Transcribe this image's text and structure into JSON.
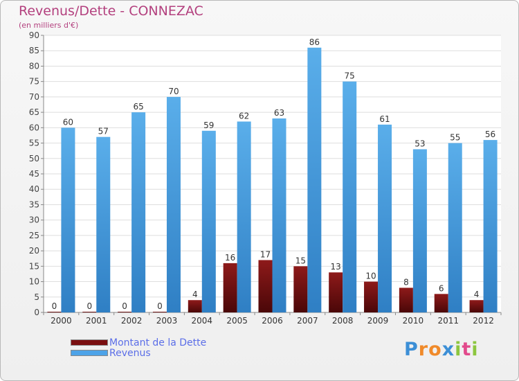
{
  "header": {
    "title": "Revenus/Dette - CONNEZAC",
    "subtitle": "(en milliers d'€)"
  },
  "legend": [
    {
      "label": "Montant de la Dette",
      "color": "#7a0f10"
    },
    {
      "label": "Revenus",
      "color": "#4da3e8"
    }
  ],
  "logo": {
    "text": "Proxiti",
    "letters": [
      "P",
      "r",
      "o",
      "x",
      "i",
      "t",
      "i"
    ],
    "colors": [
      "#3c8fd6",
      "#f08a2a",
      "#f08a2a",
      "#3c8fd6",
      "#8cc63f",
      "#e24a8c",
      "#8cc63f"
    ]
  },
  "chart_data": {
    "type": "bar",
    "title": "Revenus/Dette - CONNEZAC",
    "subtitle": "(en milliers d'€)",
    "xlabel": "",
    "ylabel": "",
    "ylim": [
      0,
      90
    ],
    "yticks": [
      0,
      5,
      10,
      15,
      20,
      25,
      30,
      35,
      40,
      45,
      50,
      55,
      60,
      65,
      70,
      75,
      80,
      85,
      90
    ],
    "grid": true,
    "legend_position": "bottom-left",
    "categories": [
      "2000",
      "2001",
      "2002",
      "2003",
      "2004",
      "2005",
      "2006",
      "2007",
      "2008",
      "2009",
      "2010",
      "2011",
      "2012"
    ],
    "series": [
      {
        "name": "Montant de la Dette",
        "color": "#7a0f10",
        "values": [
          0,
          0,
          0,
          0,
          4,
          16,
          17,
          15,
          13,
          10,
          8,
          6,
          4
        ]
      },
      {
        "name": "Revenus",
        "color": "#4da3e8",
        "values": [
          60,
          57,
          65,
          70,
          59,
          62,
          63,
          86,
          75,
          61,
          53,
          55,
          56
        ]
      }
    ]
  }
}
